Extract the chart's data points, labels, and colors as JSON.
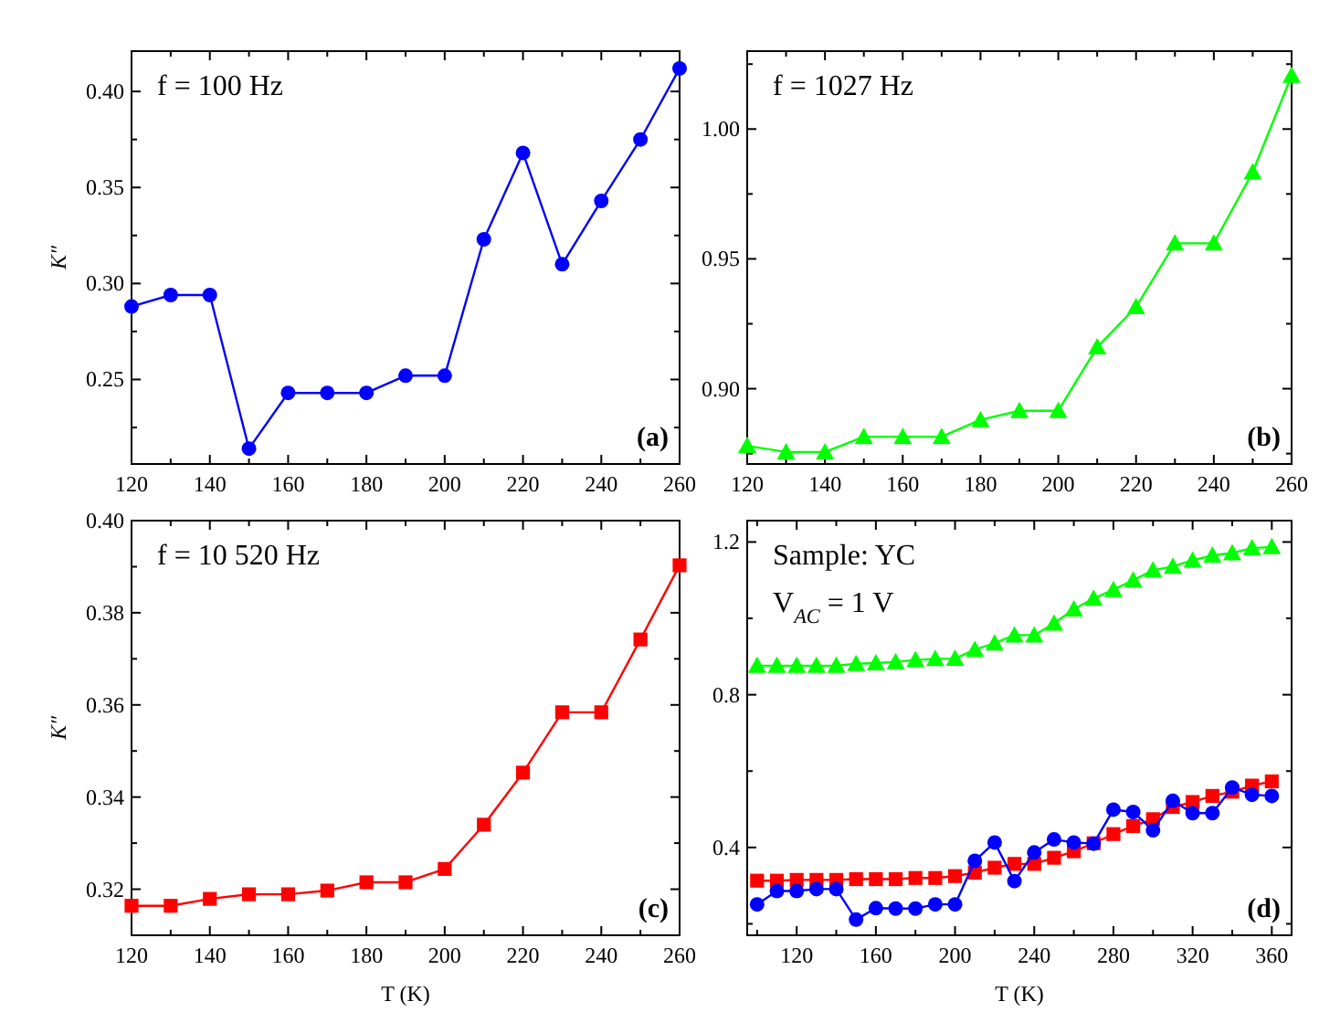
{
  "chart_data": [
    {
      "type": "line",
      "ylabel": "K″",
      "xlim": [
        120,
        260
      ],
      "xticks": [
        120,
        {
          "value": 130,
          "label": null
        },
        140,
        {
          "value": 150,
          "label": null
        },
        160,
        {
          "value": 170,
          "label": null
        },
        180,
        {
          "value": 190,
          "label": null
        },
        200,
        {
          "value": 210,
          "label": null
        },
        220,
        {
          "value": 230,
          "label": null
        },
        240,
        {
          "value": 250,
          "label": null
        },
        260
      ],
      "ylim": [
        0.206,
        0.421
      ],
      "yticks": [
        {
          "value": 0.225,
          "label": null
        },
        0.25,
        {
          "value": 0.275,
          "label": null
        },
        {
          "value": 0.3,
          "label": "0.30"
        },
        {
          "value": 0.325,
          "label": null
        },
        0.35,
        {
          "value": 0.375,
          "label": null
        },
        {
          "value": 0.4,
          "label": "0.40"
        }
      ],
      "grid": false,
      "line_style": "solid",
      "annotations": [
        "f = 100 Hz",
        "(a)"
      ],
      "x": [
        120,
        130,
        140,
        150,
        160,
        170,
        180,
        190,
        200,
        210,
        220,
        230,
        240,
        250,
        260
      ],
      "series": [
        {
          "color": "#0000ff",
          "marker": "circle",
          "values": [
            0.288,
            0.294,
            0.294,
            0.214,
            0.243,
            0.243,
            0.243,
            0.252,
            0.252,
            0.323,
            0.368,
            0.31,
            0.343,
            0.375,
            0.412
          ]
        }
      ]
    },
    {
      "type": "line",
      "xlim": [
        120,
        260
      ],
      "xticks": [
        120,
        {
          "value": 130,
          "label": null
        },
        140,
        {
          "value": 150,
          "label": null
        },
        160,
        {
          "value": 170,
          "label": null
        },
        180,
        {
          "value": 190,
          "label": null
        },
        200,
        {
          "value": 210,
          "label": null
        },
        220,
        {
          "value": 230,
          "label": null
        },
        240,
        {
          "value": 250,
          "label": null
        },
        260
      ],
      "ylim": [
        0.871,
        1.03
      ],
      "yticks": [
        {
          "value": 0.875,
          "label": null
        },
        {
          "value": 0.9,
          "label": "0.90"
        },
        {
          "value": 0.925,
          "label": null
        },
        0.95,
        {
          "value": 0.975,
          "label": null
        },
        {
          "value": 1.0,
          "label": "1.00"
        },
        {
          "value": 1.025,
          "label": null
        }
      ],
      "grid": false,
      "line_style": "solid",
      "annotations": [
        "f = 1027 Hz",
        "(b)"
      ],
      "x": [
        120,
        130,
        140,
        150,
        160,
        170,
        180,
        190,
        200,
        210,
        220,
        230,
        240,
        250,
        260
      ],
      "series": [
        {
          "color": "#00ff00",
          "marker": "triangle",
          "values": [
            0.878,
            0.8756,
            0.8756,
            0.8815,
            0.8815,
            0.8815,
            0.888,
            0.8915,
            0.8915,
            0.916,
            0.9315,
            0.956,
            0.956,
            0.9834,
            1.0206
          ]
        }
      ]
    },
    {
      "type": "line",
      "xlabel": "T (K)",
      "ylabel": "K″",
      "xlim": [
        120,
        260
      ],
      "xticks": [
        120,
        {
          "value": 130,
          "label": null
        },
        140,
        {
          "value": 150,
          "label": null
        },
        160,
        {
          "value": 170,
          "label": null
        },
        180,
        {
          "value": 190,
          "label": null
        },
        200,
        {
          "value": 210,
          "label": null
        },
        220,
        {
          "value": 230,
          "label": null
        },
        240,
        {
          "value": 250,
          "label": null
        },
        260
      ],
      "ylim": [
        0.31,
        0.4
      ],
      "yticks": [
        0.32,
        {
          "value": 0.33,
          "label": null
        },
        0.34,
        {
          "value": 0.35,
          "label": null
        },
        0.36,
        {
          "value": 0.37,
          "label": null
        },
        0.38,
        {
          "value": 0.39,
          "label": null
        },
        {
          "value": 0.4,
          "label": "0.40"
        }
      ],
      "grid": false,
      "line_style": "solid",
      "annotations": [
        "f = 10 520 Hz",
        "(c)"
      ],
      "x": [
        120,
        130,
        140,
        150,
        160,
        170,
        180,
        190,
        200,
        210,
        220,
        230,
        240,
        250,
        260
      ],
      "series": [
        {
          "color": "#ff0000",
          "marker": "square",
          "values": [
            0.3164,
            0.3164,
            0.3179,
            0.3189,
            0.3189,
            0.3197,
            0.3215,
            0.3215,
            0.3244,
            0.334,
            0.3453,
            0.3584,
            0.3584,
            0.3742,
            0.3903
          ]
        }
      ]
    },
    {
      "type": "line",
      "xlabel": "T (K)",
      "xlim": [
        95,
        370
      ],
      "xticks": [
        {
          "value": 100,
          "label": null
        },
        120,
        {
          "value": 140,
          "label": null
        },
        160,
        {
          "value": 180,
          "label": null
        },
        200,
        {
          "value": 220,
          "label": null
        },
        240,
        {
          "value": 260,
          "label": null
        },
        280,
        {
          "value": 300,
          "label": null
        },
        320,
        {
          "value": 340,
          "label": null
        },
        360
      ],
      "ylim": [
        0.17,
        1.256
      ],
      "yticks": [
        {
          "value": 0.2,
          "label": null
        },
        0.4,
        {
          "value": 0.6,
          "label": null
        },
        0.8,
        {
          "value": 1.0,
          "label": null
        },
        1.2
      ],
      "grid": false,
      "line_style": "solid",
      "annotations": [
        "Sample: YC",
        "V$_{AC}$ = 1 V",
        "(d)"
      ],
      "x": [
        100,
        110,
        120,
        130,
        140,
        150,
        160,
        170,
        180,
        190,
        200,
        210,
        220,
        230,
        240,
        250,
        260,
        270,
        280,
        290,
        300,
        310,
        320,
        330,
        340,
        350,
        360
      ],
      "series": [
        {
          "color": "#00ff00",
          "marker": "triangle",
          "values": [
            0.876,
            0.876,
            0.876,
            0.876,
            0.876,
            0.881,
            0.883,
            0.886,
            0.891,
            0.894,
            0.895,
            0.918,
            0.935,
            0.956,
            0.956,
            0.987,
            1.024,
            1.052,
            1.075,
            1.1,
            1.126,
            1.136,
            1.152,
            1.165,
            1.171,
            1.184,
            1.187
          ]
        },
        {
          "color": "#ff0000",
          "marker": "square",
          "values": [
            0.313,
            0.313,
            0.315,
            0.315,
            0.315,
            0.317,
            0.317,
            0.317,
            0.32,
            0.32,
            0.325,
            0.334,
            0.347,
            0.357,
            0.357,
            0.373,
            0.39,
            0.411,
            0.435,
            0.456,
            0.474,
            0.506,
            0.519,
            0.535,
            0.546,
            0.562,
            0.573
          ]
        },
        {
          "color": "#0000ff",
          "marker": "circle",
          "values": [
            0.251,
            0.286,
            0.286,
            0.291,
            0.291,
            0.211,
            0.241,
            0.24,
            0.24,
            0.251,
            0.251,
            0.365,
            0.413,
            0.312,
            0.387,
            0.421,
            0.413,
            0.41,
            0.499,
            0.493,
            0.445,
            0.522,
            0.49,
            0.49,
            0.557,
            0.538,
            0.535
          ]
        }
      ]
    }
  ]
}
